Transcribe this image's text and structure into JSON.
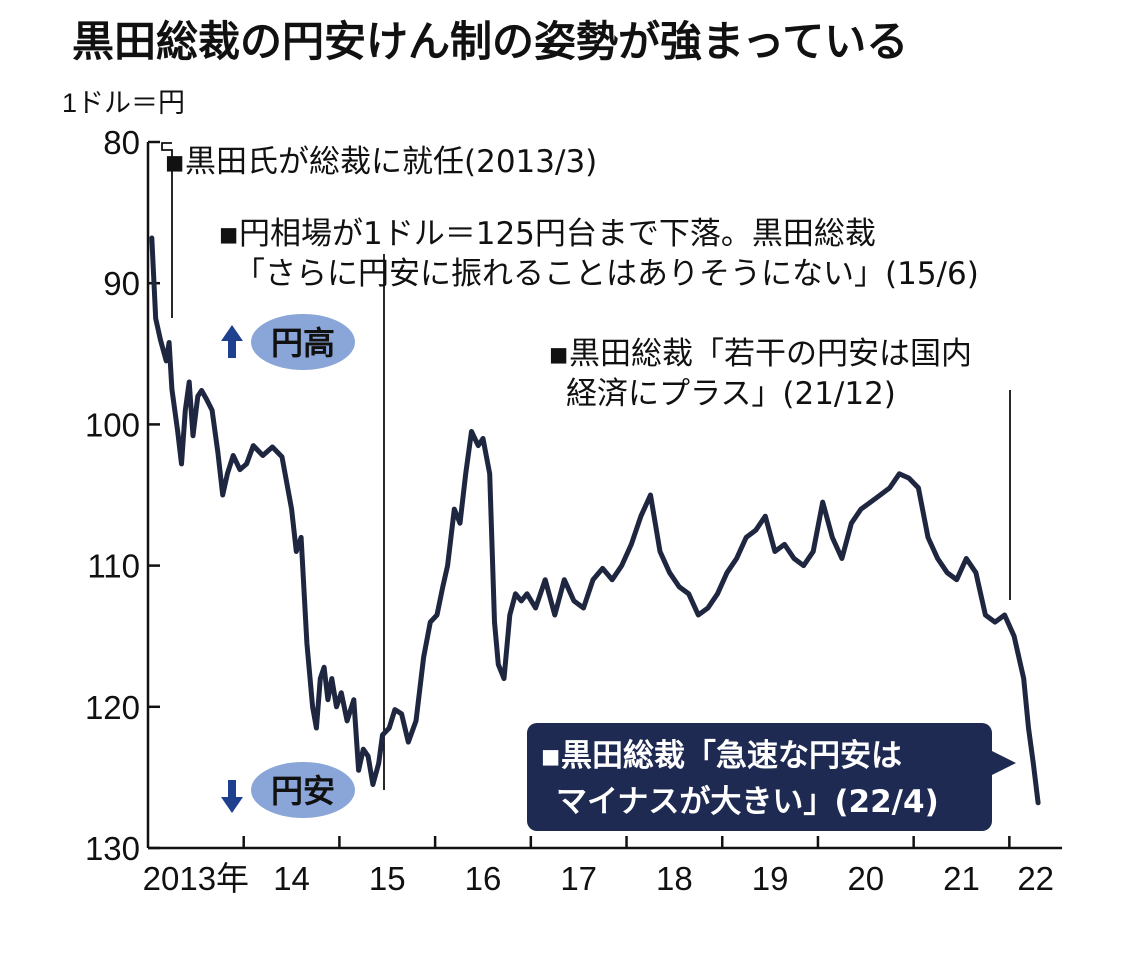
{
  "title": "黒田総裁の円安けん制の姿勢が強まっている",
  "unit_label": "1ドル＝円",
  "colors": {
    "line": "#1f2640",
    "annotation_box": "#1f2a52",
    "badge": "#8aa6d8",
    "arrow": "#1f3f8f"
  },
  "badges": {
    "up": {
      "label": "円高",
      "icon": "up-arrow-icon"
    },
    "down": {
      "label": "円安",
      "icon": "down-arrow-icon"
    }
  },
  "annotations": {
    "a1": "▪黒田氏が総裁に就任(2013/3)",
    "a2_line1": "▪円相場が1ドル＝125円台まで下落。黒田総裁",
    "a2_line2": "「さらに円安に振れることはありそうにない」(15/6)",
    "a3_line1": "▪黒田総裁「若干の円安は国内",
    "a3_line2": "経済にプラス」(21/12)",
    "a4_line1": "▪黒田総裁「急速な円安は",
    "a4_line2": "マイナスが大きい」(22/4)"
  },
  "chart_data": {
    "type": "line",
    "title": "黒田総裁の円安けん制の姿勢が強まっている",
    "ylabel": "1ドル＝円",
    "y_inverted": true,
    "ylim": [
      80,
      130
    ],
    "yticks": [
      80,
      90,
      100,
      110,
      120,
      130
    ],
    "ytick_labels": [
      "80",
      "90",
      "100",
      "110",
      "120",
      "130"
    ],
    "xlim": [
      2013.0,
      2022.55
    ],
    "xticks": [
      2013,
      2014,
      2015,
      2016,
      2017,
      2018,
      2019,
      2020,
      2021,
      2022
    ],
    "xtick_labels": [
      "2013年",
      "14",
      "15",
      "16",
      "17",
      "18",
      "19",
      "20",
      "21",
      "22"
    ],
    "grid": false,
    "series": [
      {
        "x": [
          2013.04,
          2013.08,
          2013.13,
          2013.19,
          2013.22,
          2013.25,
          2013.28,
          2013.31,
          2013.35,
          2013.39,
          2013.43,
          2013.47,
          2013.52,
          2013.56,
          2013.61,
          2013.67,
          2013.73,
          2013.78,
          2013.83,
          2013.89,
          2013.96,
          2014.03,
          2014.1,
          2014.2,
          2014.3,
          2014.4,
          2014.5,
          2014.55,
          2014.6,
          2014.66,
          2014.72,
          2014.76,
          2014.8,
          2014.84,
          2014.88,
          2014.92,
          2014.97,
          2015.02,
          2015.08,
          2015.15,
          2015.2,
          2015.25,
          2015.3,
          2015.35,
          2015.41,
          2015.45,
          2015.52,
          2015.58,
          2015.65,
          2015.72,
          2015.8,
          2015.88,
          2015.95,
          2016.02,
          2016.08,
          2016.13,
          2016.2,
          2016.26,
          2016.32,
          2016.38,
          2016.45,
          2016.5,
          2016.57,
          2016.62,
          2016.66,
          2016.72,
          2016.78,
          2016.84,
          2016.9,
          2016.96,
          2017.05,
          2017.15,
          2017.25,
          2017.35,
          2017.45,
          2017.55,
          2017.65,
          2017.75,
          2017.85,
          2017.95,
          2018.05,
          2018.15,
          2018.25,
          2018.35,
          2018.45,
          2018.55,
          2018.65,
          2018.75,
          2018.85,
          2018.95,
          2019.05,
          2019.15,
          2019.25,
          2019.35,
          2019.45,
          2019.55,
          2019.65,
          2019.75,
          2019.85,
          2019.95,
          2020.05,
          2020.15,
          2020.25,
          2020.35,
          2020.45,
          2020.55,
          2020.65,
          2020.75,
          2020.85,
          2020.95,
          2021.05,
          2021.15,
          2021.25,
          2021.35,
          2021.45,
          2021.55,
          2021.65,
          2021.75,
          2021.85,
          2021.95,
          2022.05,
          2022.15,
          2022.2,
          2022.25,
          2022.3
        ],
        "values": [
          86.8,
          92.5,
          94.0,
          95.5,
          94.2,
          97.5,
          99.0,
          100.5,
          102.8,
          99.0,
          97.0,
          100.8,
          98.0,
          97.6,
          98.2,
          99.0,
          102.0,
          105.0,
          103.5,
          102.2,
          103.2,
          102.8,
          101.5,
          102.2,
          101.6,
          102.3,
          106.0,
          109.0,
          108.0,
          115.5,
          120.0,
          121.5,
          118.0,
          117.2,
          119.5,
          118.0,
          120.0,
          119.0,
          121.0,
          119.5,
          124.5,
          123.0,
          123.5,
          125.5,
          124.0,
          122.0,
          121.5,
          120.2,
          120.5,
          122.5,
          121.0,
          116.5,
          114.0,
          113.5,
          111.5,
          110.0,
          106.0,
          107.0,
          103.5,
          100.5,
          101.5,
          101.0,
          103.5,
          114.0,
          117.0,
          118.0,
          113.5,
          112.0,
          112.5,
          112.0,
          113.0,
          111.0,
          113.5,
          111.0,
          112.5,
          113.0,
          111.0,
          110.2,
          111.0,
          110.0,
          108.5,
          106.5,
          105.0,
          109.0,
          110.5,
          111.5,
          112.0,
          113.5,
          113.0,
          112.0,
          110.5,
          109.5,
          108.0,
          107.5,
          106.5,
          109.0,
          108.5,
          109.5,
          110.0,
          109.0,
          105.5,
          108.0,
          109.5,
          107.0,
          106.0,
          105.5,
          105.0,
          104.5,
          103.5,
          103.8,
          104.5,
          108.0,
          109.5,
          110.5,
          111.0,
          109.5,
          110.5,
          113.5,
          114.0,
          113.5,
          115.0,
          118.0,
          121.5,
          124.0,
          126.8
        ],
        "color": "#1f2640"
      }
    ],
    "annotations": [
      {
        "x": 2013.21,
        "label": "黒田氏が総裁に就任(2013/3)"
      },
      {
        "x": 2015.45,
        "label": "円相場が1ドル＝125円台まで下落。黒田総裁「さらに円安に振れることはありそうにない」(15/6)"
      },
      {
        "x": 2021.95,
        "label": "黒田総裁「若干の円安は国内経済にプラス」(21/12)"
      },
      {
        "x": 2022.25,
        "label": "黒田総裁「急速な円安はマイナスが大きい」(22/4)"
      }
    ]
  }
}
